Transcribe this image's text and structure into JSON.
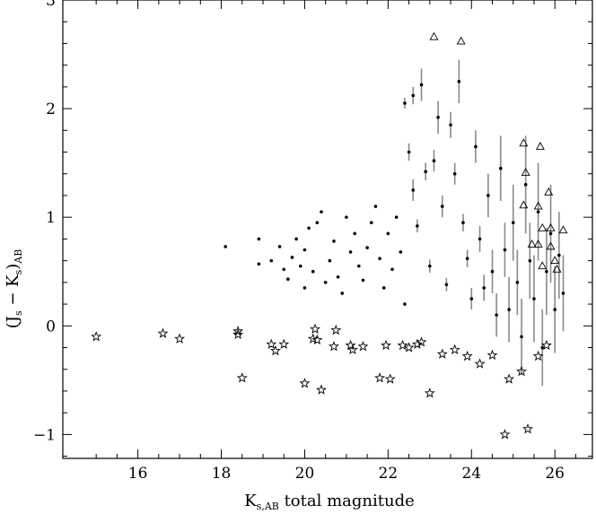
{
  "chart_data": {
    "type": "scatter",
    "title": "",
    "xlabel": {
      "main": "K",
      "sub": "s,AB",
      "suffix": " total magnitude"
    },
    "ylabel": {
      "open": "(J",
      "sub1": "s",
      "mid": " − K",
      "sub2": "s",
      "close": ")",
      "sub3": "AB"
    },
    "xlim": [
      14.2,
      26.9
    ],
    "ylim": [
      -1.22,
      3.0
    ],
    "xticks": [
      16,
      18,
      20,
      22,
      24,
      26
    ],
    "yticks": [
      -1,
      0,
      1,
      2,
      3
    ],
    "xtick_labels": [
      "16",
      "18",
      "20",
      "22",
      "24",
      "26"
    ],
    "ytick_labels": [
      "−1",
      "0",
      "1",
      "2",
      "3"
    ],
    "grid": false,
    "series": [
      {
        "marker": "dot",
        "points": [
          [
            18.1,
            0.73
          ],
          [
            18.9,
            0.8
          ],
          [
            18.9,
            0.57
          ],
          [
            19.2,
            0.6
          ],
          [
            19.4,
            0.73
          ],
          [
            19.5,
            0.52
          ],
          [
            19.6,
            0.43
          ],
          [
            19.7,
            0.63
          ],
          [
            19.8,
            0.8
          ],
          [
            19.9,
            0.55
          ],
          [
            20.0,
            0.7
          ],
          [
            20.0,
            0.35
          ],
          [
            20.1,
            0.9
          ],
          [
            20.2,
            0.5
          ],
          [
            20.3,
            0.95
          ],
          [
            20.4,
            1.05
          ],
          [
            20.5,
            0.4
          ],
          [
            20.6,
            0.6
          ],
          [
            20.7,
            0.78
          ],
          [
            20.8,
            0.45
          ],
          [
            20.9,
            0.3
          ],
          [
            21.0,
            1.0
          ],
          [
            21.1,
            0.68
          ],
          [
            21.2,
            0.85
          ],
          [
            21.3,
            0.55
          ],
          [
            21.4,
            0.42
          ],
          [
            21.5,
            0.72
          ],
          [
            21.6,
            0.95
          ],
          [
            21.7,
            1.1
          ],
          [
            21.8,
            0.62
          ],
          [
            21.9,
            0.35
          ],
          [
            22.0,
            0.85
          ],
          [
            22.1,
            0.52
          ],
          [
            22.2,
            1.0
          ],
          [
            22.3,
            0.68
          ],
          [
            22.4,
            0.2
          ]
        ]
      },
      {
        "marker": "dot-errorbar",
        "points": [
          [
            22.4,
            2.05,
            0.05
          ],
          [
            22.5,
            1.6,
            0.08
          ],
          [
            22.6,
            2.12,
            0.08
          ],
          [
            22.6,
            1.25,
            0.1
          ],
          [
            22.7,
            0.92,
            0.06
          ],
          [
            22.8,
            2.22,
            0.15
          ],
          [
            22.9,
            1.42,
            0.08
          ],
          [
            23.0,
            0.55,
            0.06
          ],
          [
            23.1,
            1.52,
            0.1
          ],
          [
            23.2,
            1.92,
            0.15
          ],
          [
            23.3,
            1.1,
            0.1
          ],
          [
            23.4,
            0.38,
            0.06
          ],
          [
            23.5,
            1.85,
            0.12
          ],
          [
            23.6,
            1.4,
            0.1
          ],
          [
            23.7,
            2.25,
            0.2
          ],
          [
            23.8,
            0.95,
            0.08
          ],
          [
            23.9,
            0.62,
            0.08
          ],
          [
            24.0,
            0.25,
            0.1
          ],
          [
            24.1,
            1.65,
            0.15
          ],
          [
            24.2,
            0.8,
            0.12
          ],
          [
            24.3,
            0.35,
            0.12
          ],
          [
            24.4,
            1.2,
            0.2
          ],
          [
            24.5,
            0.5,
            0.2
          ],
          [
            24.6,
            0.1,
            0.2
          ],
          [
            24.7,
            1.45,
            0.3
          ],
          [
            24.8,
            0.7,
            0.25
          ],
          [
            24.9,
            0.15,
            0.3
          ],
          [
            25.0,
            0.95,
            0.35
          ],
          [
            25.1,
            0.4,
            0.3
          ],
          [
            25.2,
            -0.1,
            0.35
          ],
          [
            25.3,
            1.3,
            0.45
          ],
          [
            25.4,
            0.6,
            0.35
          ],
          [
            25.5,
            0.25,
            0.4
          ],
          [
            25.6,
            1.05,
            0.45
          ],
          [
            25.7,
            -0.2,
            0.35
          ],
          [
            25.8,
            0.5,
            0.4
          ],
          [
            25.9,
            0.85,
            0.45
          ],
          [
            26.0,
            0.15,
            0.4
          ],
          [
            26.1,
            0.65,
            0.4
          ],
          [
            26.2,
            0.3,
            0.35
          ]
        ]
      },
      {
        "marker": "star",
        "points": [
          [
            15.0,
            -0.1
          ],
          [
            16.6,
            -0.07
          ],
          [
            17.0,
            -0.12
          ],
          [
            18.4,
            -0.05
          ],
          [
            18.4,
            -0.08
          ],
          [
            18.5,
            -0.48
          ],
          [
            19.2,
            -0.17
          ],
          [
            19.3,
            -0.23
          ],
          [
            19.5,
            -0.17
          ],
          [
            20.0,
            -0.53
          ],
          [
            20.2,
            -0.12
          ],
          [
            20.25,
            -0.03
          ],
          [
            20.3,
            -0.13
          ],
          [
            20.4,
            -0.59
          ],
          [
            20.7,
            -0.19
          ],
          [
            20.75,
            -0.04
          ],
          [
            21.1,
            -0.18
          ],
          [
            21.15,
            -0.22
          ],
          [
            21.4,
            -0.19
          ],
          [
            21.8,
            -0.48
          ],
          [
            21.95,
            -0.18
          ],
          [
            22.05,
            -0.49
          ],
          [
            22.35,
            -0.18
          ],
          [
            22.5,
            -0.2
          ],
          [
            22.7,
            -0.17
          ],
          [
            22.8,
            -0.15
          ],
          [
            23.0,
            -0.62
          ],
          [
            23.3,
            -0.26
          ],
          [
            23.6,
            -0.22
          ],
          [
            23.9,
            -0.28
          ],
          [
            24.2,
            -0.35
          ],
          [
            24.5,
            -0.27
          ],
          [
            24.8,
            -1.0
          ],
          [
            24.9,
            -0.49
          ],
          [
            25.2,
            -0.42
          ],
          [
            25.35,
            -0.95
          ],
          [
            25.6,
            -0.28
          ],
          [
            25.8,
            -0.18
          ]
        ]
      },
      {
        "marker": "triangle",
        "points": [
          [
            23.1,
            2.66
          ],
          [
            23.75,
            2.62
          ],
          [
            25.25,
            1.68
          ],
          [
            25.3,
            1.41
          ],
          [
            25.25,
            1.11
          ],
          [
            25.6,
            1.1
          ],
          [
            25.7,
            0.9
          ],
          [
            25.65,
            1.65
          ],
          [
            25.85,
            1.23
          ],
          [
            25.9,
            0.9
          ],
          [
            26.2,
            0.88
          ],
          [
            25.45,
            0.75
          ],
          [
            25.6,
            0.75
          ],
          [
            25.9,
            0.73
          ],
          [
            26.0,
            0.6
          ],
          [
            26.05,
            0.52
          ],
          [
            25.7,
            0.55
          ]
        ]
      }
    ]
  }
}
